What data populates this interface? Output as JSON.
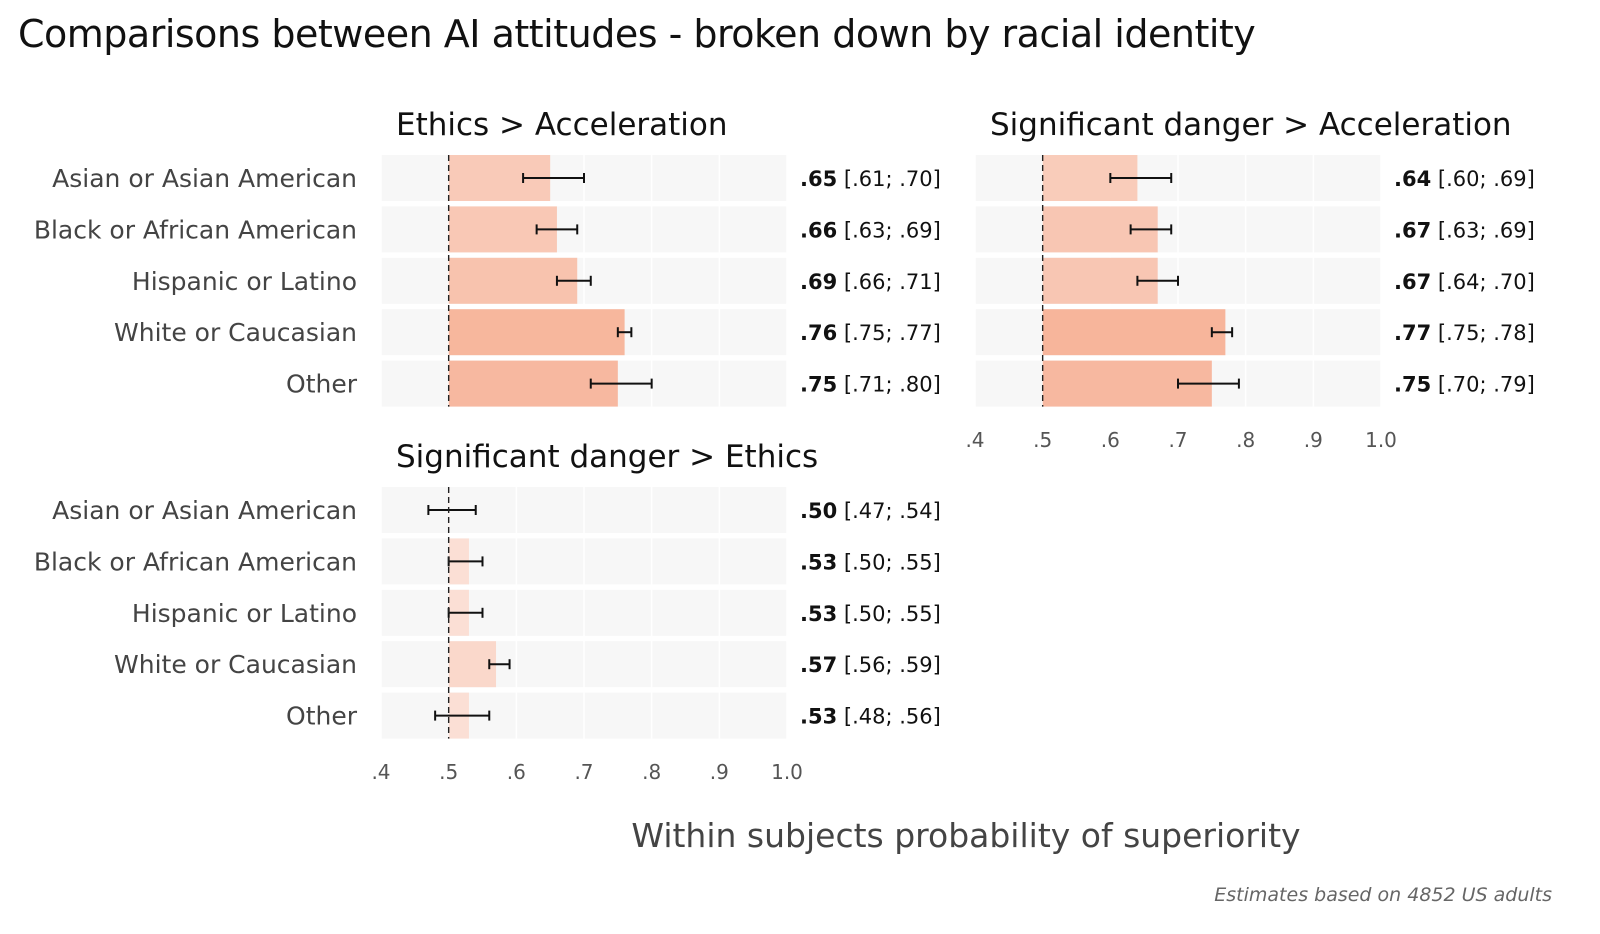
{
  "title": "Comparisons between AI attitudes - broken down by racial identity",
  "footnote": "Estimates based on 4852 US adults",
  "colors": {
    "panel_bg": "#f7f7f7",
    "dashed_line": "#222222",
    "bar_low": "#fbe4dc",
    "bar_high": "#f7b59b"
  },
  "chart_data": {
    "type": "bar",
    "orientation": "horizontal",
    "xlabel": "Within subjects probability of superiority",
    "xlim": [
      0.4,
      1.0
    ],
    "reference_line": 0.5,
    "xticks": [
      ".4",
      ".5",
      ".6",
      ".7",
      ".8",
      ".9",
      "1.0"
    ],
    "categories": [
      "Asian or Asian American",
      "Black or African American",
      "Hispanic or Latino",
      "White or Caucasian",
      "Other"
    ],
    "panels": [
      {
        "title": "Ethics > Acceleration",
        "values": [
          0.65,
          0.66,
          0.69,
          0.76,
          0.75
        ],
        "ci_low": [
          0.61,
          0.63,
          0.66,
          0.75,
          0.71
        ],
        "ci_high": [
          0.7,
          0.69,
          0.71,
          0.77,
          0.8
        ],
        "labels_bold": [
          ".65",
          ".66",
          ".69",
          ".76",
          ".75"
        ],
        "labels_ci": [
          "[.61; .70]",
          "[.63; .69]",
          "[.66; .71]",
          "[.75; .77]",
          "[.71; .80]"
        ]
      },
      {
        "title": "Significant danger > Acceleration",
        "values": [
          0.64,
          0.67,
          0.67,
          0.77,
          0.75
        ],
        "ci_low": [
          0.6,
          0.63,
          0.64,
          0.75,
          0.7
        ],
        "ci_high": [
          0.69,
          0.69,
          0.7,
          0.78,
          0.79
        ],
        "labels_bold": [
          ".64",
          ".67",
          ".67",
          ".77",
          ".75"
        ],
        "labels_ci": [
          "[.60; .69]",
          "[.63; .69]",
          "[.64; .70]",
          "[.75; .78]",
          "[.70; .79]"
        ]
      },
      {
        "title": "Significant danger > Ethics",
        "values": [
          0.5,
          0.53,
          0.53,
          0.57,
          0.53
        ],
        "ci_low": [
          0.47,
          0.5,
          0.5,
          0.56,
          0.48
        ],
        "ci_high": [
          0.54,
          0.55,
          0.55,
          0.59,
          0.56
        ],
        "labels_bold": [
          ".50",
          ".53",
          ".53",
          ".57",
          ".53"
        ],
        "labels_ci": [
          "[.47; .54]",
          "[.50; .55]",
          "[.50; .55]",
          "[.56; .59]",
          "[.48; .56]"
        ]
      }
    ]
  }
}
